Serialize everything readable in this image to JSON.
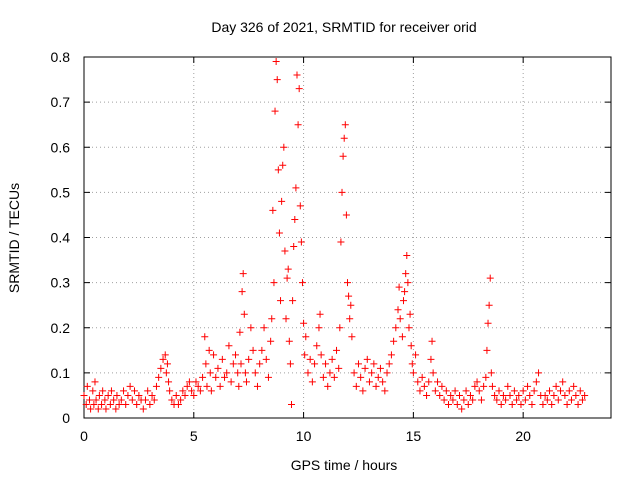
{
  "chart_data": {
    "type": "scatter",
    "title": "Day 326 of 2021, SRMTID for receiver orid",
    "xlabel": "GPS time / hours",
    "ylabel": "SRMTID / TECUs",
    "xlim": [
      0,
      24
    ],
    "ylim": [
      0,
      0.8
    ],
    "xticks": [
      0,
      5,
      10,
      15,
      20
    ],
    "xtick_labels": [
      "0",
      "5",
      "10",
      "15",
      "20"
    ],
    "yticks": [
      0,
      0.1,
      0.2,
      0.3,
      0.4,
      0.5,
      0.6,
      0.7,
      0.8
    ],
    "ytick_labels": [
      "0",
      "0.1",
      "0.2",
      "0.3",
      "0.4",
      "0.5",
      "0.6",
      "0.7",
      "0.8"
    ],
    "grid": true,
    "marker": "plus",
    "series": [
      {
        "name": "SRMTID",
        "color": "#ff0000",
        "points": [
          [
            0.0,
            0.05
          ],
          [
            0.1,
            0.03
          ],
          [
            0.15,
            0.07
          ],
          [
            0.25,
            0.04
          ],
          [
            0.3,
            0.02
          ],
          [
            0.4,
            0.06
          ],
          [
            0.45,
            0.03
          ],
          [
            0.5,
            0.08
          ],
          [
            0.55,
            0.04
          ],
          [
            0.65,
            0.02
          ],
          [
            0.7,
            0.05
          ],
          [
            0.8,
            0.03
          ],
          [
            0.85,
            0.06
          ],
          [
            0.95,
            0.04
          ],
          [
            1.0,
            0.02
          ],
          [
            1.1,
            0.05
          ],
          [
            1.2,
            0.03
          ],
          [
            1.25,
            0.06
          ],
          [
            1.35,
            0.04
          ],
          [
            1.45,
            0.02
          ],
          [
            1.5,
            0.05
          ],
          [
            1.6,
            0.03
          ],
          [
            1.7,
            0.04
          ],
          [
            1.8,
            0.06
          ],
          [
            1.9,
            0.03
          ],
          [
            2.0,
            0.05
          ],
          [
            2.1,
            0.07
          ],
          [
            2.2,
            0.04
          ],
          [
            2.3,
            0.06
          ],
          [
            2.4,
            0.03
          ],
          [
            2.5,
            0.05
          ],
          [
            2.6,
            0.04
          ],
          [
            2.7,
            0.02
          ],
          [
            2.8,
            0.04
          ],
          [
            2.9,
            0.06
          ],
          [
            3.0,
            0.03
          ],
          [
            3.1,
            0.05
          ],
          [
            3.2,
            0.04
          ],
          [
            3.3,
            0.07
          ],
          [
            3.4,
            0.09
          ],
          [
            3.5,
            0.11
          ],
          [
            3.6,
            0.13
          ],
          [
            3.7,
            0.14
          ],
          [
            3.75,
            0.1
          ],
          [
            3.8,
            0.12
          ],
          [
            3.85,
            0.08
          ],
          [
            3.9,
            0.06
          ],
          [
            4.0,
            0.04
          ],
          [
            4.1,
            0.03
          ],
          [
            4.2,
            0.05
          ],
          [
            4.3,
            0.03
          ],
          [
            4.4,
            0.04
          ],
          [
            4.5,
            0.06
          ],
          [
            4.6,
            0.05
          ],
          [
            4.7,
            0.07
          ],
          [
            4.8,
            0.08
          ],
          [
            4.9,
            0.06
          ],
          [
            5.0,
            0.05
          ],
          [
            5.1,
            0.08
          ],
          [
            5.2,
            0.07
          ],
          [
            5.3,
            0.06
          ],
          [
            5.4,
            0.09
          ],
          [
            5.5,
            0.18
          ],
          [
            5.55,
            0.12
          ],
          [
            5.6,
            0.07
          ],
          [
            5.7,
            0.15
          ],
          [
            5.75,
            0.1
          ],
          [
            5.8,
            0.06
          ],
          [
            5.9,
            0.14
          ],
          [
            6.0,
            0.09
          ],
          [
            6.1,
            0.11
          ],
          [
            6.2,
            0.07
          ],
          [
            6.3,
            0.13
          ],
          [
            6.4,
            0.09
          ],
          [
            6.5,
            0.1
          ],
          [
            6.6,
            0.16
          ],
          [
            6.7,
            0.08
          ],
          [
            6.8,
            0.12
          ],
          [
            6.9,
            0.14
          ],
          [
            7.0,
            0.1
          ],
          [
            7.05,
            0.07
          ],
          [
            7.1,
            0.19
          ],
          [
            7.15,
            0.12
          ],
          [
            7.2,
            0.28
          ],
          [
            7.25,
            0.32
          ],
          [
            7.3,
            0.23
          ],
          [
            7.35,
            0.1
          ],
          [
            7.4,
            0.08
          ],
          [
            7.5,
            0.13
          ],
          [
            7.6,
            0.2
          ],
          [
            7.7,
            0.15
          ],
          [
            7.8,
            0.1
          ],
          [
            7.9,
            0.07
          ],
          [
            8.0,
            0.12
          ],
          [
            8.1,
            0.15
          ],
          [
            8.2,
            0.2
          ],
          [
            8.3,
            0.13
          ],
          [
            8.4,
            0.09
          ],
          [
            8.5,
            0.17
          ],
          [
            8.55,
            0.22
          ],
          [
            8.6,
            0.46
          ],
          [
            8.65,
            0.3
          ],
          [
            8.7,
            0.68
          ],
          [
            8.75,
            0.79
          ],
          [
            8.8,
            0.75
          ],
          [
            8.85,
            0.55
          ],
          [
            8.9,
            0.41
          ],
          [
            8.95,
            0.26
          ],
          [
            9.0,
            0.48
          ],
          [
            9.05,
            0.56
          ],
          [
            9.1,
            0.6
          ],
          [
            9.15,
            0.37
          ],
          [
            9.2,
            0.22
          ],
          [
            9.25,
            0.31
          ],
          [
            9.3,
            0.33
          ],
          [
            9.35,
            0.17
          ],
          [
            9.4,
            0.12
          ],
          [
            9.45,
            0.03
          ],
          [
            9.5,
            0.26
          ],
          [
            9.55,
            0.38
          ],
          [
            9.6,
            0.44
          ],
          [
            9.65,
            0.51
          ],
          [
            9.7,
            0.76
          ],
          [
            9.75,
            0.65
          ],
          [
            9.8,
            0.73
          ],
          [
            9.85,
            0.47
          ],
          [
            9.9,
            0.39
          ],
          [
            9.95,
            0.3
          ],
          [
            10.0,
            0.21
          ],
          [
            10.05,
            0.14
          ],
          [
            10.1,
            0.18
          ],
          [
            10.2,
            0.1
          ],
          [
            10.3,
            0.13
          ],
          [
            10.4,
            0.08
          ],
          [
            10.5,
            0.12
          ],
          [
            10.6,
            0.16
          ],
          [
            10.7,
            0.2
          ],
          [
            10.75,
            0.23
          ],
          [
            10.8,
            0.14
          ],
          [
            10.9,
            0.09
          ],
          [
            11.0,
            0.12
          ],
          [
            11.1,
            0.07
          ],
          [
            11.2,
            0.1
          ],
          [
            11.3,
            0.13
          ],
          [
            11.4,
            0.09
          ],
          [
            11.5,
            0.15
          ],
          [
            11.6,
            0.11
          ],
          [
            11.65,
            0.2
          ],
          [
            11.7,
            0.39
          ],
          [
            11.75,
            0.5
          ],
          [
            11.8,
            0.58
          ],
          [
            11.85,
            0.62
          ],
          [
            11.9,
            0.65
          ],
          [
            11.95,
            0.45
          ],
          [
            12.0,
            0.3
          ],
          [
            12.05,
            0.27
          ],
          [
            12.1,
            0.22
          ],
          [
            12.15,
            0.25
          ],
          [
            12.2,
            0.18
          ],
          [
            12.3,
            0.1
          ],
          [
            12.4,
            0.07
          ],
          [
            12.5,
            0.12
          ],
          [
            12.6,
            0.09
          ],
          [
            12.7,
            0.06
          ],
          [
            12.8,
            0.11
          ],
          [
            12.9,
            0.13
          ],
          [
            13.0,
            0.08
          ],
          [
            13.1,
            0.1
          ],
          [
            13.2,
            0.12
          ],
          [
            13.3,
            0.07
          ],
          [
            13.4,
            0.09
          ],
          [
            13.5,
            0.11
          ],
          [
            13.6,
            0.08
          ],
          [
            13.7,
            0.06
          ],
          [
            13.8,
            0.1
          ],
          [
            13.9,
            0.12
          ],
          [
            14.0,
            0.14
          ],
          [
            14.1,
            0.17
          ],
          [
            14.2,
            0.2
          ],
          [
            14.3,
            0.24
          ],
          [
            14.35,
            0.29
          ],
          [
            14.4,
            0.22
          ],
          [
            14.5,
            0.18
          ],
          [
            14.55,
            0.26
          ],
          [
            14.6,
            0.28
          ],
          [
            14.65,
            0.32
          ],
          [
            14.7,
            0.36
          ],
          [
            14.75,
            0.3
          ],
          [
            14.8,
            0.2
          ],
          [
            14.85,
            0.23
          ],
          [
            14.9,
            0.16
          ],
          [
            14.95,
            0.12
          ],
          [
            15.0,
            0.1
          ],
          [
            15.1,
            0.14
          ],
          [
            15.2,
            0.08
          ],
          [
            15.3,
            0.06
          ],
          [
            15.4,
            0.09
          ],
          [
            15.5,
            0.07
          ],
          [
            15.6,
            0.05
          ],
          [
            15.7,
            0.08
          ],
          [
            15.8,
            0.13
          ],
          [
            15.85,
            0.17
          ],
          [
            15.9,
            0.1
          ],
          [
            16.0,
            0.06
          ],
          [
            16.1,
            0.08
          ],
          [
            16.2,
            0.05
          ],
          [
            16.3,
            0.07
          ],
          [
            16.4,
            0.04
          ],
          [
            16.5,
            0.06
          ],
          [
            16.6,
            0.03
          ],
          [
            16.7,
            0.05
          ],
          [
            16.8,
            0.04
          ],
          [
            16.9,
            0.06
          ],
          [
            17.0,
            0.03
          ],
          [
            17.1,
            0.05
          ],
          [
            17.2,
            0.02
          ],
          [
            17.3,
            0.04
          ],
          [
            17.4,
            0.06
          ],
          [
            17.5,
            0.03
          ],
          [
            17.6,
            0.05
          ],
          [
            17.7,
            0.04
          ],
          [
            17.8,
            0.07
          ],
          [
            17.9,
            0.08
          ],
          [
            18.0,
            0.06
          ],
          [
            18.1,
            0.04
          ],
          [
            18.2,
            0.07
          ],
          [
            18.3,
            0.09
          ],
          [
            18.35,
            0.15
          ],
          [
            18.4,
            0.21
          ],
          [
            18.45,
            0.25
          ],
          [
            18.5,
            0.31
          ],
          [
            18.55,
            0.1
          ],
          [
            18.6,
            0.07
          ],
          [
            18.7,
            0.05
          ],
          [
            18.8,
            0.04
          ],
          [
            18.9,
            0.06
          ],
          [
            19.0,
            0.03
          ],
          [
            19.1,
            0.05
          ],
          [
            19.2,
            0.04
          ],
          [
            19.3,
            0.07
          ],
          [
            19.4,
            0.05
          ],
          [
            19.5,
            0.03
          ],
          [
            19.6,
            0.06
          ],
          [
            19.7,
            0.04
          ],
          [
            19.8,
            0.05
          ],
          [
            19.9,
            0.03
          ],
          [
            20.0,
            0.06
          ],
          [
            20.1,
            0.04
          ],
          [
            20.2,
            0.07
          ],
          [
            20.3,
            0.05
          ],
          [
            20.4,
            0.03
          ],
          [
            20.5,
            0.06
          ],
          [
            20.6,
            0.08
          ],
          [
            20.7,
            0.1
          ],
          [
            20.8,
            0.05
          ],
          [
            20.9,
            0.03
          ],
          [
            21.0,
            0.05
          ],
          [
            21.1,
            0.04
          ],
          [
            21.2,
            0.06
          ],
          [
            21.3,
            0.03
          ],
          [
            21.4,
            0.05
          ],
          [
            21.5,
            0.07
          ],
          [
            21.6,
            0.04
          ],
          [
            21.7,
            0.06
          ],
          [
            21.8,
            0.08
          ],
          [
            21.9,
            0.05
          ],
          [
            22.0,
            0.03
          ],
          [
            22.1,
            0.06
          ],
          [
            22.2,
            0.04
          ],
          [
            22.3,
            0.07
          ],
          [
            22.4,
            0.05
          ],
          [
            22.5,
            0.03
          ],
          [
            22.6,
            0.06
          ],
          [
            22.7,
            0.04
          ],
          [
            22.8,
            0.05
          ]
        ]
      }
    ]
  }
}
